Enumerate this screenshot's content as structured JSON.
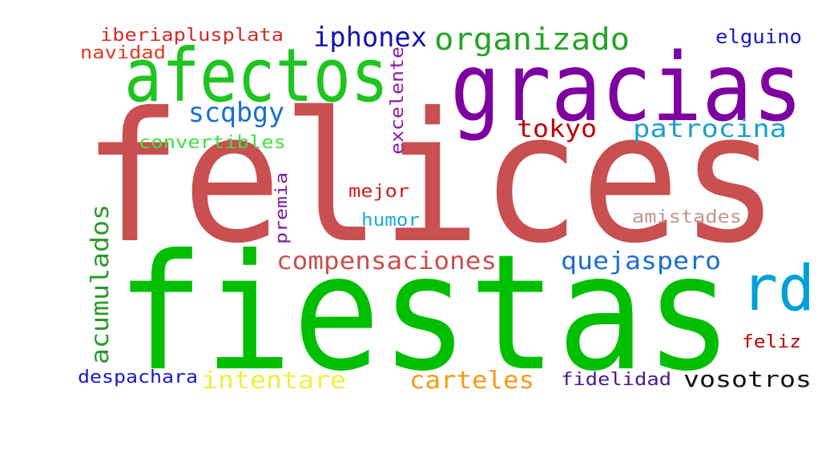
{
  "word_cloud": {
    "words": [
      {
        "text": "felices",
        "color": "#c94f50"
      },
      {
        "text": "fiestas",
        "color": "#00bf00"
      },
      {
        "text": "gracias",
        "color": "#7f00a0"
      },
      {
        "text": "afectos",
        "color": "#1fc51f"
      },
      {
        "text": "rd",
        "color": "#00a0d8"
      },
      {
        "text": "organizado",
        "color": "#24a424"
      },
      {
        "text": "iphonex",
        "color": "#1414b4"
      },
      {
        "text": "iberiaplusplata",
        "color": "#d42a2a"
      },
      {
        "text": "navidad",
        "color": "#e33a20"
      },
      {
        "text": "elguino",
        "color": "#1a1ac8"
      },
      {
        "text": "excelente",
        "color": "#8c1aa8"
      },
      {
        "text": "scqbgy",
        "color": "#1a6fd0"
      },
      {
        "text": "tokyo",
        "color": "#c00000"
      },
      {
        "text": "patrocina",
        "color": "#1a9fd0"
      },
      {
        "text": "convertibles",
        "color": "#40e040"
      },
      {
        "text": "premia",
        "color": "#7a1aa0"
      },
      {
        "text": "mejor",
        "color": "#c82020"
      },
      {
        "text": "humor",
        "color": "#1aa8d8"
      },
      {
        "text": "amistades",
        "color": "#c49494"
      },
      {
        "text": "acumulados",
        "color": "#2a9a2a"
      },
      {
        "text": "compensaciones",
        "color": "#c94f50"
      },
      {
        "text": "quejaspero",
        "color": "#1a6fd0"
      },
      {
        "text": "feliz",
        "color": "#c00000"
      },
      {
        "text": "despachara",
        "color": "#1a1ac8"
      },
      {
        "text": "intentare",
        "color": "#f0f040"
      },
      {
        "text": "carteles",
        "color": "#f59a18"
      },
      {
        "text": "fidelidad",
        "color": "#4a1a8c"
      },
      {
        "text": "vosotros",
        "color": "#111111"
      }
    ]
  }
}
